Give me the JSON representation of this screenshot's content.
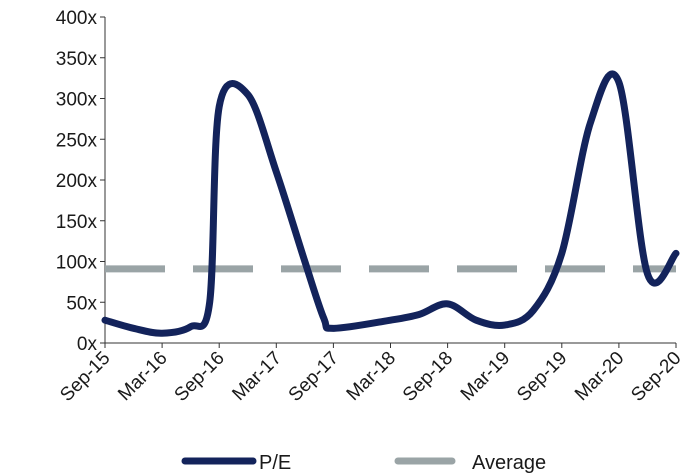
{
  "chart_data": {
    "type": "line",
    "title": "",
    "xlabel": "",
    "ylabel": "",
    "ylim": [
      0,
      400
    ],
    "y_ticks": [
      "0x",
      "50x",
      "100x",
      "150x",
      "200x",
      "250x",
      "300x",
      "350x",
      "400x"
    ],
    "y_tick_values": [
      0,
      50,
      100,
      150,
      200,
      250,
      300,
      350,
      400
    ],
    "x_tick_labels": [
      "Sep-15",
      "Mar-16",
      "Sep-16",
      "Mar-17",
      "Sep-17",
      "Mar-18",
      "Sep-18",
      "Mar-19",
      "Sep-19",
      "Mar-20",
      "Sep-20"
    ],
    "grid": false,
    "legend_position": "bottom",
    "series": [
      {
        "name": "P/E",
        "color": "#13235b",
        "style": "solid",
        "x": [
          "Sep-15",
          "Dec-15",
          "Mar-16",
          "Jun-16",
          "Aug-16",
          "Sep-16",
          "Dec-16",
          "Mar-17",
          "Jun-17",
          "Aug-17",
          "Sep-17",
          "Mar-18",
          "Jun-18",
          "Sep-18",
          "Dec-18",
          "Mar-19",
          "Jun-19",
          "Sep-19",
          "Dec-19",
          "Mar-20",
          "Jun-20",
          "Sep-20"
        ],
        "values": [
          28,
          18,
          12,
          20,
          50,
          290,
          305,
          210,
          100,
          30,
          18,
          28,
          35,
          48,
          28,
          22,
          40,
          110,
          270,
          320,
          85,
          110
        ]
      },
      {
        "name": "Average",
        "color": "#9aa4a6",
        "style": "dashed",
        "x": [
          "Sep-15",
          "Sep-20"
        ],
        "values": [
          91,
          91
        ]
      }
    ]
  }
}
